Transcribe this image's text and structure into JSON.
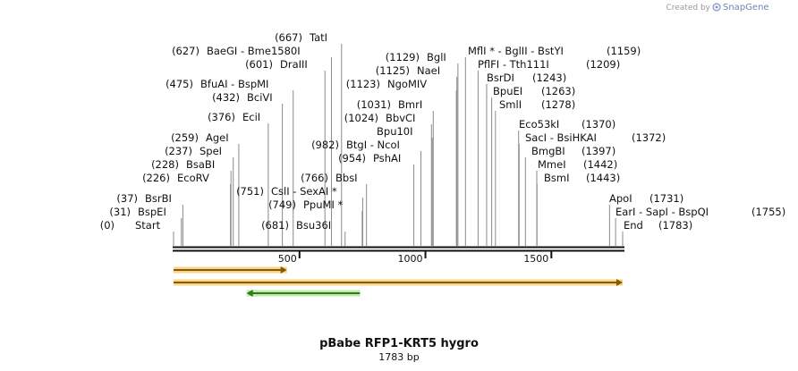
{
  "header": {
    "credit_text": "Created by",
    "credit_brand": "SnapGene"
  },
  "plasmid": {
    "name": "pBabe RFP1-KRT5 hygro",
    "length_label": "1783 bp",
    "length": 1783
  },
  "ruler": {
    "ticks": [
      {
        "pos": 500,
        "label": "500"
      },
      {
        "pos": 1000,
        "label": "1000"
      },
      {
        "pos": 1500,
        "label": "1500"
      }
    ]
  },
  "features": [
    {
      "name": "feature-arrow-1",
      "start": 0,
      "end": 450,
      "direction": "forward",
      "color": "#f2b233",
      "arrow": "#8a5a00"
    },
    {
      "name": "feature-arrow-2",
      "start": 0,
      "end": 1783,
      "direction": "forward",
      "color": "#f2b233",
      "arrow": "#8a5a00"
    },
    {
      "name": "feature-arrow-3",
      "start": 290,
      "end": 740,
      "direction": "reverse",
      "color": "#8bd66a",
      "arrow": "#2f7a1a"
    }
  ],
  "sites": [
    {
      "pos": "(0)",
      "name": "Start",
      "coord": 0,
      "italic": true
    },
    {
      "pos": "(31)",
      "name": "BspEI",
      "coord": 31
    },
    {
      "pos": "(37)",
      "name": "BsrBI",
      "coord": 37
    },
    {
      "pos": "(226)",
      "name": "EcoRV",
      "coord": 226
    },
    {
      "pos": "(228)",
      "name": "BsaBI",
      "coord": 228
    },
    {
      "pos": "(237)",
      "name": "SpeI",
      "coord": 237
    },
    {
      "pos": "(259)",
      "name": "AgeI",
      "coord": 259
    },
    {
      "pos": "(376)",
      "name": "EciI",
      "coord": 376
    },
    {
      "pos": "(432)",
      "name": "BciVI",
      "coord": 432
    },
    {
      "pos": "(475)",
      "name": "BfuAI - BspMI",
      "coord": 475
    },
    {
      "pos": "(601)",
      "name": "DraIII",
      "coord": 601
    },
    {
      "pos": "(627)",
      "name": "BaeGI - Bme1580I",
      "coord": 627
    },
    {
      "pos": "(667)",
      "name": "TatI",
      "coord": 667
    },
    {
      "pos": "(681)",
      "name": "Bsu36I",
      "coord": 681
    },
    {
      "pos": "(749)",
      "name": "PpuMI *",
      "coord": 749
    },
    {
      "pos": "(751)",
      "name": "CslI - SexAI *",
      "coord": 751
    },
    {
      "pos": "(766)",
      "name": "BbsI",
      "coord": 766
    },
    {
      "pos": "(954)",
      "name": "PshAI",
      "coord": 954
    },
    {
      "pos": "(982)",
      "name": "BtgI - NcoI",
      "coord": 982
    },
    {
      "pos": "(1024)",
      "name": "BbvCI",
      "coord": 1024
    },
    {
      "pos": "(1031)",
      "name": "BmrI",
      "coord": 1031
    },
    {
      "pos": "(1123)",
      "name": "NgoMIV",
      "coord": 1123
    },
    {
      "pos": "(1125)",
      "name": "NaeI",
      "coord": 1125
    },
    {
      "pos": "(1129)",
      "name": "BglI",
      "coord": 1129
    },
    {
      "pos": "",
      "name": "Bpu10I",
      "coord": 1027
    },
    {
      "pos": "(1159)",
      "name": "MflI * - BglII - BstYI",
      "coord": 1159
    },
    {
      "pos": "(1209)",
      "name": "PflFI - Tth111I",
      "coord": 1209
    },
    {
      "pos": "(1243)",
      "name": "BsrDI",
      "coord": 1243
    },
    {
      "pos": "(1263)",
      "name": "BpuEI",
      "coord": 1263
    },
    {
      "pos": "(1278)",
      "name": "SmlI",
      "coord": 1278
    },
    {
      "pos": "(1370)",
      "name": "Eco53kI",
      "coord": 1370
    },
    {
      "pos": "(1372)",
      "name": "SacI - BsiHKAI",
      "coord": 1372
    },
    {
      "pos": "(1397)",
      "name": "BmgBI",
      "coord": 1397
    },
    {
      "pos": "(1442)",
      "name": "MmeI",
      "coord": 1442
    },
    {
      "pos": "(1443)",
      "name": "BsmI",
      "coord": 1443
    },
    {
      "pos": "(1731)",
      "name": "ApoI",
      "coord": 1731
    },
    {
      "pos": "(1755)",
      "name": "EarI - SapI - BspQI",
      "coord": 1755
    },
    {
      "pos": "(1783)",
      "name": "End",
      "coord": 1783,
      "italic": true
    }
  ]
}
